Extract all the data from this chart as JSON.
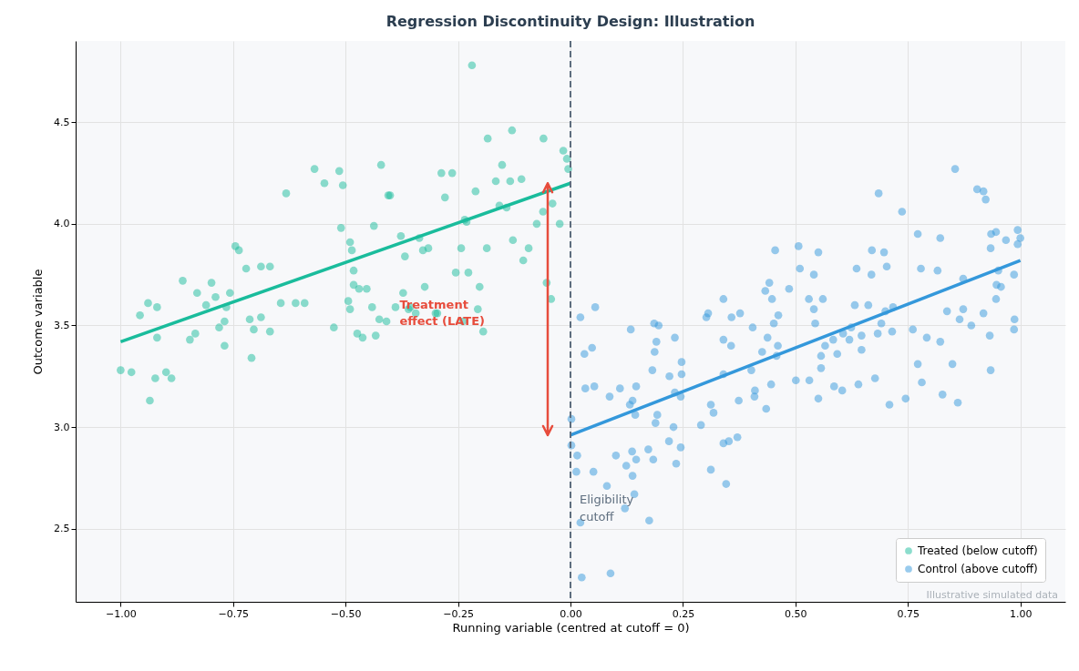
{
  "chart_data": {
    "type": "scatter",
    "title": "Regression Discontinuity Design: Illustration",
    "xlabel": "Running variable (centred at cutoff = 0)",
    "ylabel": "Outcome variable",
    "xlim": [
      -1.1,
      1.1
    ],
    "ylim": [
      2.14,
      4.9
    ],
    "xticks": [
      {
        "value": -1,
        "label": "−1.00"
      },
      {
        "value": -0.75,
        "label": "−0.75"
      },
      {
        "value": -0.5,
        "label": "−0.50"
      },
      {
        "value": -0.25,
        "label": "−0.25"
      },
      {
        "value": 0,
        "label": "0.00"
      },
      {
        "value": 0.25,
        "label": "0.25"
      },
      {
        "value": 0.5,
        "label": "0.50"
      },
      {
        "value": 0.75,
        "label": "0.75"
      },
      {
        "value": 1,
        "label": "1.00"
      }
    ],
    "yticks": [
      2.5,
      {
        "value": 3,
        "label": "3.0"
      },
      3.5,
      {
        "value": 4,
        "label": "4.0"
      },
      4.5
    ],
    "grid": true,
    "legend": "bottom right",
    "marker": "circle",
    "series": [
      {
        "name": "Treated (below cutoff)",
        "color": "#1abc9c",
        "x": [
          -1.0,
          -0.976,
          -0.957,
          -0.939,
          -0.935,
          -0.919,
          -0.923,
          -0.919,
          -0.899,
          -0.887,
          -0.862,
          -0.846,
          -0.834,
          -0.83,
          -0.81,
          -0.798,
          -0.789,
          -0.781,
          -0.769,
          -0.769,
          -0.765,
          -0.757,
          -0.745,
          -0.737,
          -0.721,
          -0.713,
          -0.709,
          -0.704,
          -0.688,
          -0.688,
          -0.668,
          -0.668,
          -0.644,
          -0.632,
          -0.611,
          -0.591,
          -0.569,
          -0.547,
          -0.526,
          -0.514,
          -0.51,
          -0.506,
          -0.494,
          -0.49,
          -0.49,
          -0.486,
          -0.482,
          -0.482,
          -0.474,
          -0.47,
          -0.462,
          -0.453,
          -0.441,
          -0.437,
          -0.433,
          -0.425,
          -0.421,
          -0.409,
          -0.405,
          -0.401,
          -0.389,
          -0.377,
          -0.372,
          -0.368,
          -0.36,
          -0.356,
          -0.344,
          -0.336,
          -0.328,
          -0.324,
          -0.316,
          -0.3,
          -0.296,
          -0.287,
          -0.279,
          -0.263,
          -0.255,
          -0.243,
          -0.239,
          -0.235,
          -0.231,
          -0.227,
          -0.211,
          -0.206,
          -0.202,
          -0.194,
          -0.186,
          -0.166,
          -0.158,
          -0.152,
          -0.142,
          -0.134,
          -0.109,
          -0.093,
          -0.075,
          -0.061,
          -0.04,
          -0.016,
          -0.008,
          -0.005,
          -0.219,
          -0.024,
          -0.043,
          -0.053,
          -0.128,
          -0.105,
          -0.13,
          -0.06,
          -0.184
        ],
        "values": [
          3.28,
          3.27,
          3.55,
          3.61,
          3.13,
          3.59,
          3.24,
          3.44,
          3.27,
          3.24,
          3.72,
          3.43,
          3.46,
          3.66,
          3.6,
          3.71,
          3.64,
          3.49,
          3.52,
          3.4,
          3.59,
          3.66,
          3.89,
          3.87,
          3.78,
          3.53,
          3.34,
          3.48,
          3.79,
          3.54,
          3.79,
          3.47,
          3.61,
          4.15,
          3.61,
          3.61,
          4.27,
          4.2,
          3.49,
          4.26,
          3.98,
          4.19,
          3.62,
          3.91,
          3.58,
          3.87,
          3.77,
          3.7,
          3.46,
          3.68,
          3.44,
          3.68,
          3.59,
          3.99,
          3.45,
          3.53,
          4.29,
          3.52,
          4.14,
          4.14,
          3.59,
          3.94,
          3.66,
          3.84,
          3.58,
          3.59,
          3.56,
          3.93,
          3.87,
          3.69,
          3.88,
          3.56,
          3.56,
          4.25,
          4.13,
          4.25,
          3.76,
          3.88,
          3.52,
          4.02,
          4.01,
          3.76,
          4.16,
          3.58,
          3.69,
          3.47,
          3.88,
          4.21,
          4.09,
          4.29,
          4.08,
          4.21,
          4.22,
          3.88,
          4.0,
          4.06,
          4.1,
          4.36,
          4.32,
          4.27,
          4.78,
          4.0,
          3.63,
          3.71,
          3.92,
          3.82,
          4.46,
          4.42,
          4.42
        ]
      },
      {
        "name": "Control (above cutoff)",
        "color": "#3498db",
        "x": [
          0.855,
          0.685,
          0.737,
          0.904,
          0.918,
          0.923,
          0.772,
          0.822,
          0.935,
          0.946,
          0.968,
          0.994,
          1.0,
          0.994,
          0.934,
          0.455,
          0.507,
          0.551,
          0.67,
          0.697,
          0.51,
          0.541,
          0.636,
          0.669,
          0.703,
          0.779,
          0.816,
          0.873,
          0.951,
          0.986,
          0.947,
          0.957,
          0.442,
          0.433,
          0.486,
          0.448,
          0.53,
          0.561,
          0.541,
          0.632,
          0.662,
          0.7,
          0.717,
          0.837,
          0.873,
          0.865,
          0.918,
          0.987,
          0.946,
          0.34,
          0.306,
          0.302,
          0.358,
          0.377,
          0.462,
          0.452,
          0.544,
          0.691,
          0.055,
          0.022,
          0.186,
          0.196,
          0.134,
          0.405,
          0.624,
          0.761,
          0.715,
          0.891,
          0.986,
          0.232,
          0.191,
          0.34,
          0.357,
          0.438,
          0.461,
          0.606,
          0.647,
          0.683,
          0.584,
          0.62,
          0.566,
          0.792,
          0.822,
          0.932,
          0.048,
          0.031,
          0.187,
          0.247,
          0.426,
          0.458,
          0.557,
          0.593,
          0.647,
          0.182,
          0.22,
          0.247,
          0.34,
          0.402,
          0.557,
          0.772,
          0.849,
          0.934,
          0.033,
          0.053,
          0.11,
          0.146,
          0.087,
          0.138,
          0.132,
          0.232,
          0.245,
          0.374,
          0.41,
          0.409,
          0.446,
          0.501,
          0.531,
          0.586,
          0.604,
          0.64,
          0.677,
          0.781,
          0.551,
          0.709,
          0.745,
          0.827,
          0.861,
          0.312,
          0.318,
          0.435,
          0.144,
          0.193,
          0.189,
          0.229,
          0.29,
          0.002,
          0.002,
          0.015,
          0.013,
          0.051,
          0.101,
          0.137,
          0.146,
          0.173,
          0.184,
          0.124,
          0.138,
          0.081,
          0.142,
          0.121,
          0.022,
          0.175,
          0.025,
          0.089,
          0.219,
          0.245,
          0.235,
          0.312,
          0.346,
          0.34,
          0.352,
          0.371
        ],
        "values": [
          4.27,
          4.15,
          4.06,
          4.17,
          4.16,
          4.12,
          3.95,
          3.93,
          3.95,
          3.96,
          3.92,
          3.97,
          3.93,
          3.9,
          3.88,
          3.87,
          3.89,
          3.86,
          3.87,
          3.86,
          3.78,
          3.75,
          3.78,
          3.75,
          3.79,
          3.78,
          3.77,
          3.73,
          3.77,
          3.75,
          3.7,
          3.69,
          3.71,
          3.67,
          3.68,
          3.63,
          3.63,
          3.63,
          3.58,
          3.6,
          3.6,
          3.57,
          3.59,
          3.57,
          3.58,
          3.53,
          3.56,
          3.53,
          3.63,
          3.63,
          3.56,
          3.54,
          3.54,
          3.56,
          3.55,
          3.51,
          3.51,
          3.51,
          3.59,
          3.54,
          3.51,
          3.5,
          3.48,
          3.49,
          3.49,
          3.48,
          3.47,
          3.5,
          3.48,
          3.44,
          3.42,
          3.43,
          3.4,
          3.44,
          3.4,
          3.46,
          3.45,
          3.46,
          3.43,
          3.43,
          3.4,
          3.44,
          3.42,
          3.45,
          3.39,
          3.36,
          3.37,
          3.32,
          3.37,
          3.35,
          3.35,
          3.36,
          3.38,
          3.28,
          3.25,
          3.26,
          3.26,
          3.28,
          3.29,
          3.31,
          3.31,
          3.28,
          3.19,
          3.2,
          3.19,
          3.2,
          3.15,
          3.13,
          3.11,
          3.17,
          3.15,
          3.13,
          3.18,
          3.15,
          3.21,
          3.23,
          3.23,
          3.2,
          3.18,
          3.21,
          3.24,
          3.22,
          3.14,
          3.11,
          3.14,
          3.16,
          3.12,
          3.11,
          3.07,
          3.09,
          3.06,
          3.06,
          3.02,
          3.0,
          3.01,
          3.04,
          2.91,
          2.86,
          2.78,
          2.78,
          2.86,
          2.88,
          2.84,
          2.89,
          2.84,
          2.81,
          2.76,
          2.71,
          2.67,
          2.6,
          2.53,
          2.54,
          2.26,
          2.28,
          2.93,
          2.9,
          2.82,
          2.79,
          2.72,
          2.92,
          2.93,
          2.95
        ]
      },
      {
        "type": "line",
        "marker": "none",
        "color": "#1abc9c",
        "x": [
          -1,
          0
        ],
        "values": [
          3.42,
          4.2
        ]
      },
      {
        "type": "line",
        "marker": "none",
        "color": "#3498db",
        "x": [
          0,
          1
        ],
        "values": [
          2.96,
          3.82
        ]
      }
    ],
    "ref_lines": [
      {
        "axis": "x",
        "value": 0,
        "label": "Eligibility\ncutoff",
        "color": "#5d6d7e",
        "line_style": "dashed"
      }
    ],
    "annotations": [
      {
        "text": "Treatment\neffect (LATE)",
        "x": -0.38,
        "y": 3.6
      },
      "Illustrative simulated data"
    ]
  }
}
